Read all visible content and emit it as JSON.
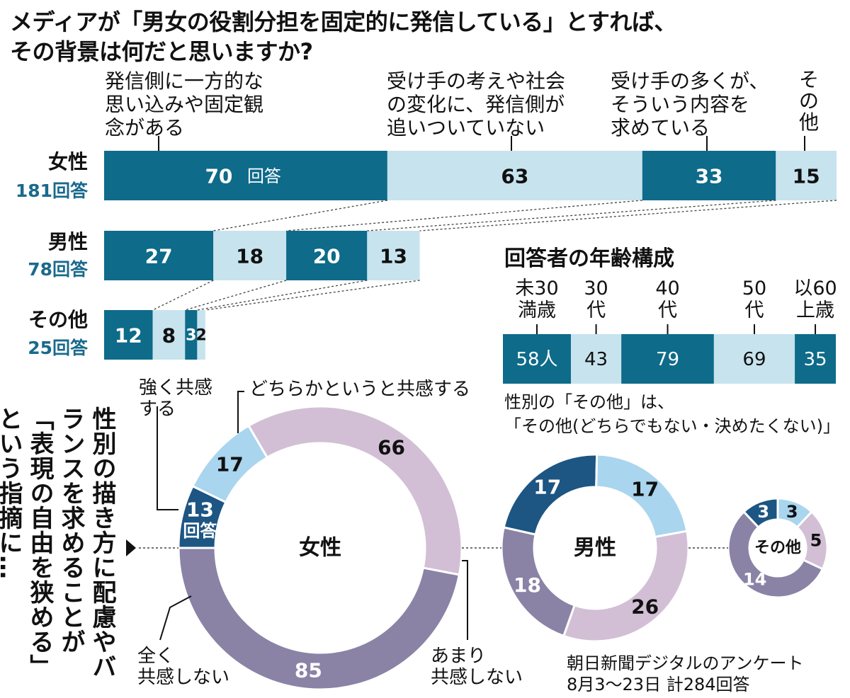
{
  "title": {
    "line1": "メディアが「男女の役割分担を固定的に発信している」とすれば、",
    "line2": "その背景は何だと思いますか?"
  },
  "colors": {
    "teal": "#0e6b8a",
    "light_blue": "#c7e3ee",
    "navy": "#1d5583",
    "sky": "#a9d5ee",
    "lavender": "#d2bfd5",
    "slate": "#8a83a6"
  },
  "chart_data": [
    {
      "type": "bar",
      "stacked": true,
      "orientation": "horizontal",
      "categories": [
        "発信側に一方的な\n思い込みや固定観\n念がある",
        "受け手の考えや社会\nの変化に、発信側が\n追いついていない",
        "受け手の多くが、\nそういう内容を\n求めている",
        "そ\nの\n他"
      ],
      "groups": [
        {
          "name": "女性",
          "total_label": "181回答",
          "values": [
            70,
            63,
            33,
            15
          ],
          "value_labels": [
            "70",
            "63",
            "33",
            "15"
          ],
          "first_suffix": "回答"
        },
        {
          "name": "男性",
          "total_label": "78回答",
          "values": [
            27,
            18,
            20,
            13
          ],
          "value_labels": [
            "27",
            "18",
            "20",
            "13"
          ]
        },
        {
          "name": "その他",
          "total_label": "25回答",
          "values": [
            12,
            8,
            3,
            2
          ],
          "value_labels": [
            "12",
            "8",
            "3",
            "2"
          ]
        }
      ]
    },
    {
      "type": "bar",
      "stacked": true,
      "orientation": "horizontal",
      "title": "回答者の年齢構成",
      "categories": [
        "未30\n満歳",
        "30\n代",
        "40\n代",
        "50\n代",
        "以60\n上歳"
      ],
      "values": [
        58,
        43,
        79,
        69,
        35
      ],
      "value_labels": [
        "58人",
        "43",
        "79",
        "69",
        "35"
      ]
    },
    {
      "type": "pie",
      "donut": true,
      "name": "女性",
      "categories": [
        "強く共感する",
        "どちらかというと共感する",
        "あまり共感しない",
        "全く共感しない"
      ],
      "values": [
        13,
        17,
        66,
        85
      ],
      "value_labels": [
        "13\n回答",
        "17",
        "66",
        "85"
      ]
    },
    {
      "type": "pie",
      "donut": true,
      "name": "男性",
      "categories": [
        "強く共感する",
        "どちらかというと共感する",
        "あまり共感しない",
        "全く共感しない"
      ],
      "values": [
        17,
        17,
        26,
        18
      ],
      "value_labels": [
        "17",
        "17",
        "26",
        "18"
      ]
    },
    {
      "type": "pie",
      "donut": true,
      "name": "その他",
      "categories": [
        "強く共感する",
        "どちらかというと共感する",
        "あまり共感しない",
        "全く共感しない"
      ],
      "values": [
        3,
        3,
        5,
        14
      ],
      "value_labels": [
        "3",
        "3",
        "5",
        "14"
      ]
    }
  ],
  "note": {
    "line1": "性別の「その他」は、",
    "line2": "「その他(どちらでもない・決めたくない)」"
  },
  "question2": "性別の描き方に配慮やバランスを求めることが「表現の自由を狭める」という指摘に…",
  "donut_labels": {
    "strong": "強く共感\nする",
    "somewhat": "どちらかというと共感する",
    "not_much": "あまり\n共感しない",
    "not_at_all": "全く\n共感しない"
  },
  "source": "朝日新聞デジタルのアンケート\n8月3〜23日 計284回答"
}
